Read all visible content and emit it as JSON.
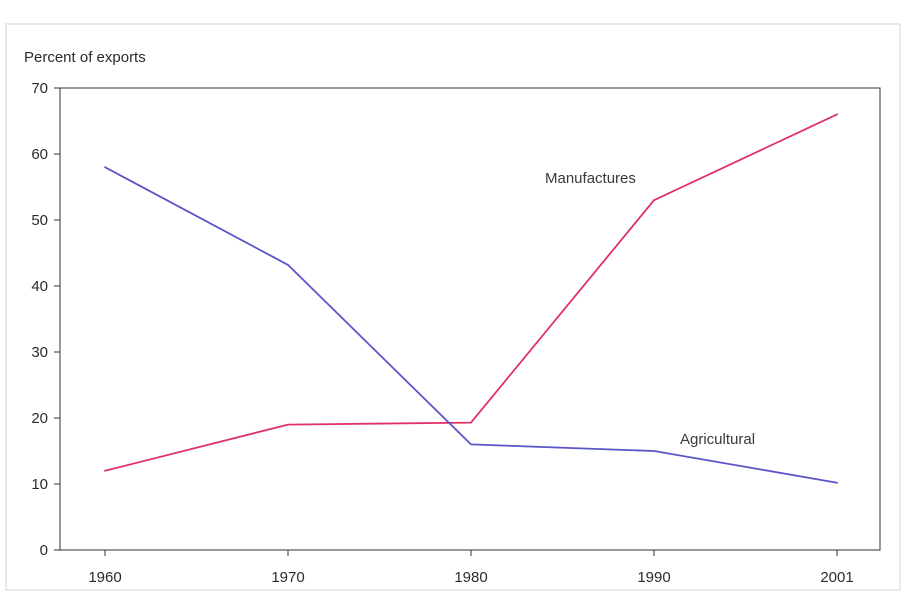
{
  "chart_data": {
    "type": "line",
    "title": "",
    "xlabel": "",
    "ylabel": "Percent of exports",
    "x": [
      1960,
      1970,
      1980,
      1990,
      2001
    ],
    "x_tick_labels": [
      "1960",
      "1970",
      "1980",
      "1990",
      "2001"
    ],
    "ylim": [
      0,
      70
    ],
    "y_ticks": [
      0,
      10,
      20,
      30,
      40,
      50,
      60,
      70
    ],
    "y_tick_labels": [
      "0",
      "10",
      "20",
      "30",
      "40",
      "50",
      "60",
      "70"
    ],
    "grid": false,
    "legend": "none (series labeled inline)",
    "series": [
      {
        "name": "Manufactures",
        "color": "#e0306a",
        "values": [
          12,
          19,
          19.3,
          53,
          66
        ]
      },
      {
        "name": "Agricultural",
        "color": "#5a55c8",
        "values": [
          58,
          43.2,
          16,
          15,
          10.2
        ]
      }
    ]
  }
}
